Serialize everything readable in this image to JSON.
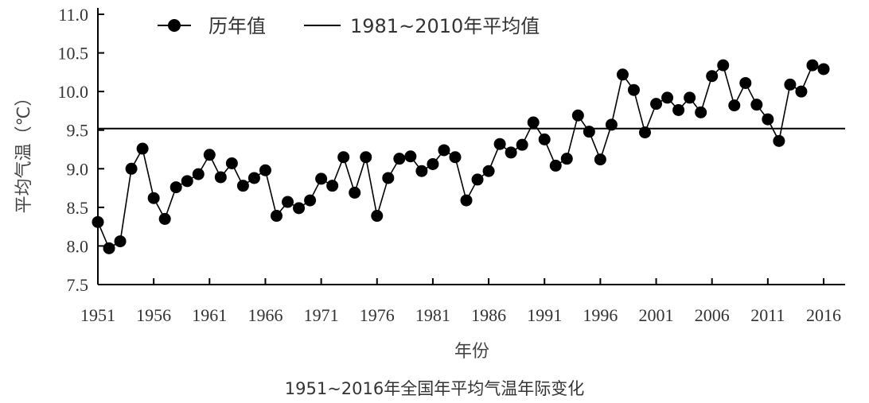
{
  "chart_data": {
    "type": "line",
    "title": "1951~2016年全国年平均气温年际变化",
    "xlabel": "年份",
    "ylabel": "平均气温（℃）",
    "xlim": [
      1951,
      2016
    ],
    "ylim": [
      7.5,
      11.0
    ],
    "x_ticks": [
      1951,
      1956,
      1961,
      1966,
      1971,
      1976,
      1981,
      1986,
      1991,
      1996,
      2001,
      2006,
      2011,
      2016
    ],
    "y_ticks": [
      "7.5",
      "8.0",
      "8.5",
      "9.0",
      "9.5",
      "10.0",
      "10.5",
      "11.0"
    ],
    "legend_position": "top-left",
    "series": [
      {
        "name": "历年值",
        "marker": "circle",
        "x": [
          1951,
          1952,
          1953,
          1954,
          1955,
          1956,
          1957,
          1958,
          1959,
          1960,
          1961,
          1962,
          1963,
          1964,
          1965,
          1966,
          1967,
          1968,
          1969,
          1970,
          1971,
          1972,
          1973,
          1974,
          1975,
          1976,
          1977,
          1978,
          1979,
          1980,
          1981,
          1982,
          1983,
          1984,
          1985,
          1986,
          1987,
          1988,
          1989,
          1990,
          1991,
          1992,
          1993,
          1994,
          1995,
          1996,
          1997,
          1998,
          1999,
          2000,
          2001,
          2002,
          2003,
          2004,
          2005,
          2006,
          2007,
          2008,
          2009,
          2010,
          2011,
          2012,
          2013,
          2014,
          2015,
          2016
        ],
        "y": [
          8.31,
          7.97,
          8.06,
          9.0,
          9.26,
          8.62,
          8.35,
          8.76,
          8.84,
          8.93,
          9.18,
          8.89,
          9.07,
          8.78,
          8.88,
          8.98,
          8.39,
          8.57,
          8.49,
          8.59,
          8.87,
          8.78,
          9.15,
          8.69,
          9.15,
          8.39,
          8.88,
          9.13,
          9.16,
          8.97,
          9.06,
          9.24,
          9.15,
          8.59,
          8.86,
          8.97,
          9.32,
          9.21,
          9.31,
          9.6,
          9.38,
          9.04,
          9.13,
          9.69,
          9.48,
          9.12,
          9.57,
          10.22,
          10.02,
          9.47,
          9.84,
          9.92,
          9.76,
          9.92,
          9.73,
          10.2,
          10.34,
          9.82,
          10.11,
          9.83,
          9.64,
          9.36,
          10.09,
          10.0,
          10.34,
          10.29
        ]
      },
      {
        "name": "1981~2010年平均值",
        "type": "hline",
        "value": 9.52
      }
    ]
  }
}
